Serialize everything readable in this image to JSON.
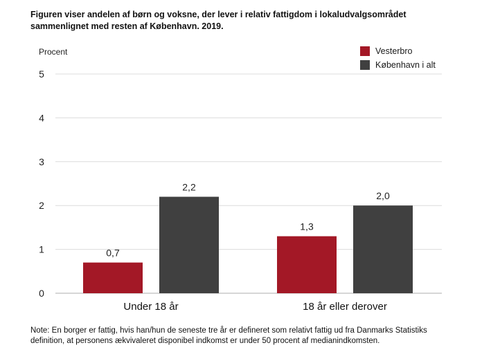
{
  "title": "Figuren viser andelen af børn og voksne, der lever i relativ fattigdom i lokaludvalgsområdet sammenlignet med resten af København. 2019.",
  "note": "Note: En borger er fattig, hvis han/hun de seneste tre år er defineret som relativt fattig ud fra Danmarks Statistiks definition, at personens ækvivaleret disponibel indkomst er under 50 procent af medianindkomsten.",
  "colors": {
    "Vesterbro": "#a31826",
    "København i alt": "#404040",
    "grid": "#dcdcdc",
    "axis": "#bdbdbd"
  },
  "chart_data": {
    "type": "bar",
    "ylabel": "Procent",
    "xlabel": "",
    "ylim": [
      0,
      5
    ],
    "yticks": [
      "0",
      "1",
      "2",
      "3",
      "4",
      "5"
    ],
    "grid": true,
    "legend_position": "top-right",
    "categories": [
      "Under 18 år",
      "18 år eller derover"
    ],
    "series": [
      {
        "name": "Vesterbro",
        "values": [
          0.7,
          1.3
        ],
        "labels": [
          "0,7",
          "1,3"
        ]
      },
      {
        "name": "København i alt",
        "values": [
          2.2,
          2.0
        ],
        "labels": [
          "2,2",
          "2,0"
        ]
      }
    ]
  }
}
